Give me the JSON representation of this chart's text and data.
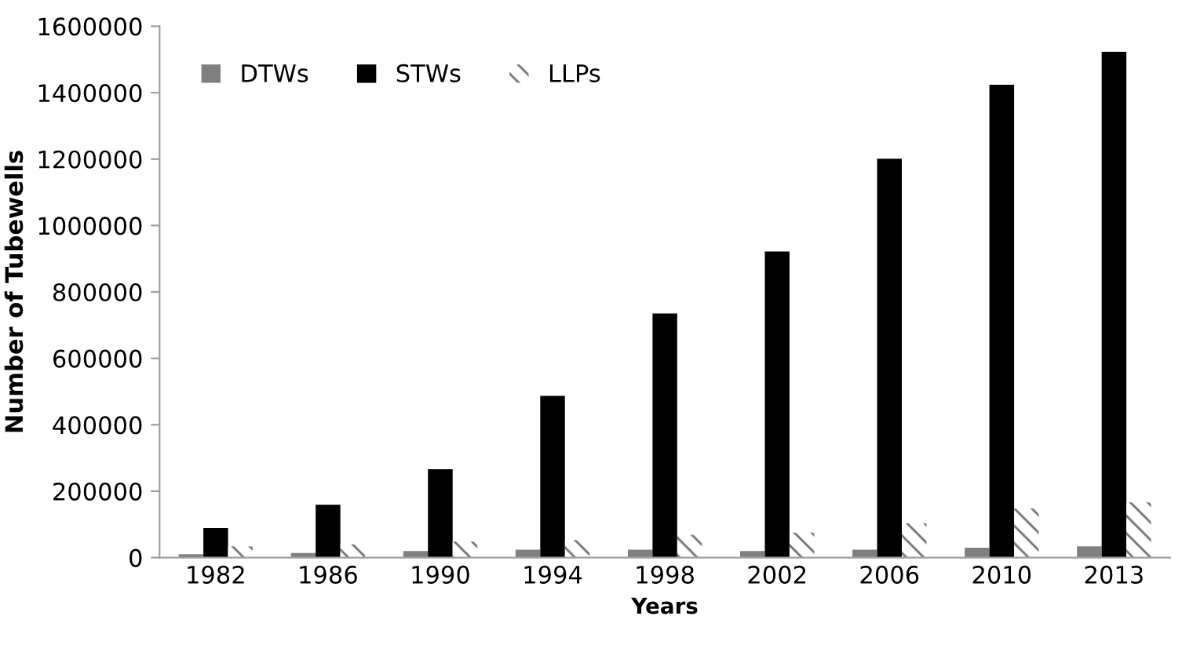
{
  "chart_data": {
    "type": "bar",
    "xlabel": "Years",
    "ylabel": "Number of Tubewells",
    "categories": [
      "1982",
      "1986",
      "1990",
      "1994",
      "1998",
      "2002",
      "2006",
      "2010",
      "2013"
    ],
    "series": [
      {
        "name": "DTWs",
        "color": "#808080",
        "values": [
          10000,
          14000,
          20000,
          24000,
          24000,
          20000,
          24000,
          30000,
          34000
        ]
      },
      {
        "name": "STWs",
        "color": "#000000",
        "values": [
          89000,
          159000,
          266000,
          487000,
          735000,
          922000,
          1201000,
          1424000,
          1523000
        ]
      },
      {
        "name": "LLPs",
        "color": "#707070",
        "values": [
          34000,
          40000,
          48000,
          53000,
          69000,
          75000,
          103000,
          148000,
          166000
        ]
      }
    ],
    "ylim": [
      0,
      1600000
    ],
    "yticks": [
      0,
      200000,
      400000,
      600000,
      800000,
      1000000,
      1200000,
      1400000,
      1600000
    ],
    "legend": "top left",
    "grid": false
  }
}
